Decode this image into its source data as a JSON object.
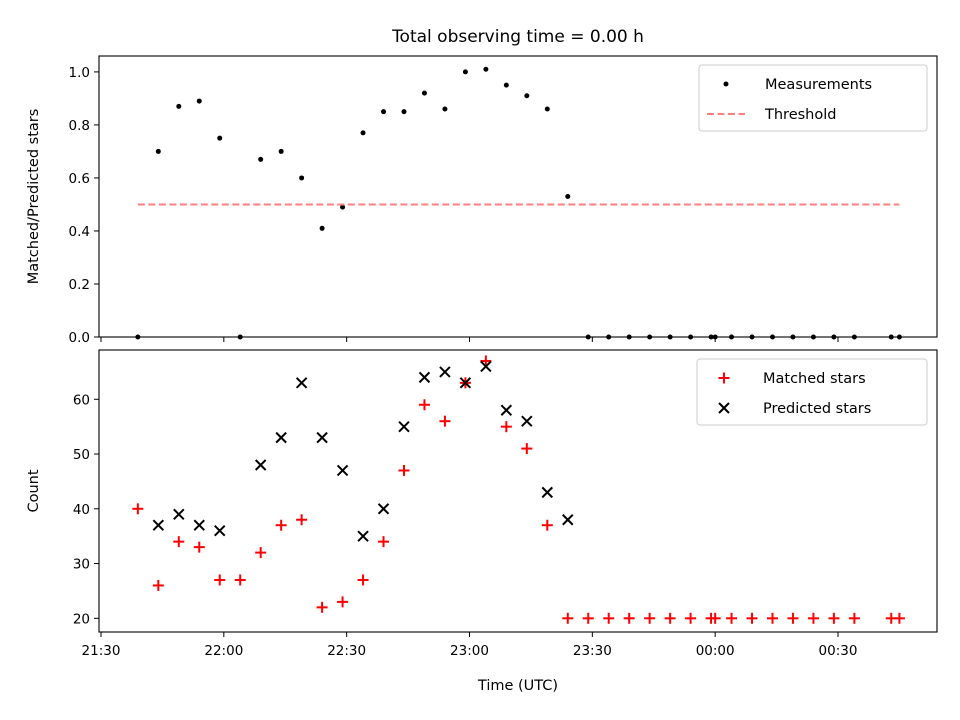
{
  "chart_data": [
    {
      "type": "scatter",
      "title": "Total observing time = 0.00 h",
      "xlabel": "",
      "ylabel": "Matched/Predicted stars",
      "ylim": [
        0,
        1.06
      ],
      "yticks": [
        "0.0",
        "0.2",
        "0.4",
        "0.6",
        "0.8",
        "1.0"
      ],
      "ytick_values": [
        0,
        0.2,
        0.4,
        0.6,
        0.8,
        1.0
      ],
      "legend_position": "upper right",
      "series": [
        {
          "name": "Measurements",
          "kind": "points",
          "color": "#000000",
          "x": [
            "21:39",
            "21:44",
            "21:49",
            "21:54",
            "21:59",
            "22:04",
            "22:09",
            "22:14",
            "22:19",
            "22:24",
            "22:29",
            "22:34",
            "22:39",
            "22:44",
            "22:49",
            "22:54",
            "22:59",
            "23:04",
            "23:09",
            "23:14",
            "23:19",
            "23:24",
            "23:29",
            "23:34",
            "23:39",
            "23:44",
            "23:49",
            "23:54",
            "23:59",
            "00:00",
            "00:04",
            "00:09",
            "00:14",
            "00:19",
            "00:24",
            "00:29",
            "00:34",
            "00:43",
            "00:45"
          ],
          "y": [
            0.0,
            0.7,
            0.87,
            0.89,
            0.75,
            0.0,
            0.67,
            0.7,
            0.6,
            0.41,
            0.49,
            0.77,
            0.85,
            0.85,
            0.92,
            0.86,
            1.0,
            1.01,
            0.95,
            0.91,
            0.86,
            0.53,
            0.0,
            0.0,
            0.0,
            0.0,
            0.0,
            0.0,
            0.0,
            0.0,
            0.0,
            0.0,
            0.0,
            0.0,
            0.0,
            0.0,
            0.0,
            0.0,
            0.0
          ]
        },
        {
          "name": "Threshold",
          "kind": "dashed-line",
          "color": "#ff7f7f",
          "x": [
            "21:39",
            "00:45"
          ],
          "y": [
            0.5,
            0.5
          ]
        }
      ]
    },
    {
      "type": "scatter",
      "title": "",
      "xlabel": "Time (UTC)",
      "ylabel": "Count",
      "ylim": [
        17.5,
        69
      ],
      "yticks": [
        "20",
        "30",
        "40",
        "50",
        "60"
      ],
      "ytick_values": [
        20,
        30,
        40,
        50,
        60
      ],
      "xticks": [
        "21:30",
        "22:00",
        "22:30",
        "23:00",
        "23:30",
        "00:00",
        "00:30"
      ],
      "legend_position": "upper right",
      "series": [
        {
          "name": "Matched stars",
          "marker": "plus",
          "color": "#ff0000",
          "x": [
            "21:39",
            "21:44",
            "21:49",
            "21:54",
            "21:59",
            "22:04",
            "22:09",
            "22:14",
            "22:19",
            "22:24",
            "22:29",
            "22:34",
            "22:39",
            "22:44",
            "22:49",
            "22:54",
            "22:59",
            "23:04",
            "23:09",
            "23:14",
            "23:19",
            "23:24",
            "23:29",
            "23:34",
            "23:39",
            "23:44",
            "23:49",
            "23:54",
            "23:59",
            "00:00",
            "00:04",
            "00:09",
            "00:14",
            "00:19",
            "00:24",
            "00:29",
            "00:34",
            "00:43",
            "00:45"
          ],
          "y": [
            40,
            26,
            34,
            33,
            27,
            27,
            32,
            37,
            38,
            22,
            23,
            27,
            34,
            47,
            59,
            56,
            63,
            67,
            55,
            51,
            37,
            20,
            20,
            20,
            20,
            20,
            20,
            20,
            20,
            20,
            20,
            20,
            20,
            20,
            20,
            20,
            20,
            20,
            20
          ]
        },
        {
          "name": "Predicted stars",
          "marker": "x",
          "color": "#000000",
          "x": [
            "21:44",
            "21:49",
            "21:54",
            "21:59",
            "22:09",
            "22:14",
            "22:19",
            "22:24",
            "22:29",
            "22:34",
            "22:39",
            "22:44",
            "22:49",
            "22:54",
            "22:59",
            "23:04",
            "23:09",
            "23:14",
            "23:19",
            "23:24"
          ],
          "y": [
            37,
            39,
            37,
            36,
            48,
            53,
            63,
            53,
            47,
            35,
            40,
            55,
            64,
            65,
            63,
            66,
            58,
            56,
            43,
            38
          ]
        }
      ]
    }
  ]
}
